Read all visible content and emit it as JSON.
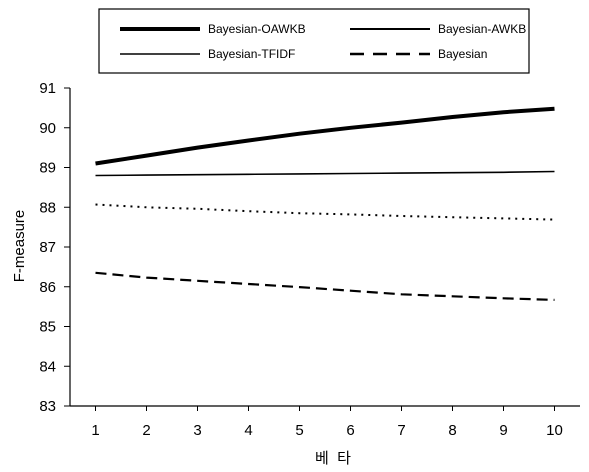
{
  "chart_data": {
    "type": "line",
    "title": "",
    "xlabel": "베  타",
    "ylabel": "F-measure",
    "x": [
      1,
      2,
      3,
      4,
      5,
      6,
      7,
      8,
      9,
      10
    ],
    "xlim": [
      0.5,
      10.5
    ],
    "ylim": [
      83,
      91
    ],
    "yticks": [
      83,
      84,
      85,
      86,
      87,
      88,
      89,
      90,
      91
    ],
    "grid": false,
    "legend_position": "top-center, boxed, two columns",
    "series": [
      {
        "name": "Bayesian-OAWKB",
        "style": "thick-solid",
        "values": [
          89.1,
          89.3,
          89.5,
          89.68,
          89.85,
          90.0,
          90.13,
          90.27,
          90.39,
          90.48
        ]
      },
      {
        "name": "Bayesian-AWKB",
        "style": "dotted",
        "values": [
          88.07,
          88.0,
          87.96,
          87.9,
          87.85,
          87.82,
          87.78,
          87.75,
          87.72,
          87.69
        ]
      },
      {
        "name": "Bayesian-TFIDF",
        "style": "thin-solid",
        "values": [
          88.8,
          88.81,
          88.82,
          88.83,
          88.84,
          88.85,
          88.86,
          88.87,
          88.88,
          88.9
        ]
      },
      {
        "name": "Bayesian",
        "style": "dashed",
        "values": [
          86.35,
          86.23,
          86.15,
          86.07,
          85.99,
          85.9,
          85.81,
          85.76,
          85.71,
          85.67
        ]
      }
    ]
  }
}
